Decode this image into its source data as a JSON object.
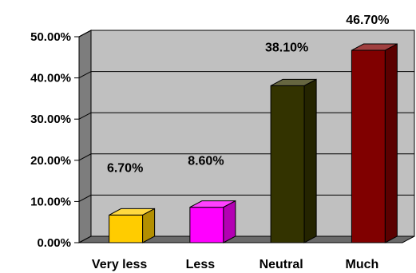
{
  "chart_data": {
    "type": "bar",
    "style": "3d",
    "categories": [
      "Very less",
      "Less",
      "Neutral",
      "Much"
    ],
    "values": [
      6.7,
      8.6,
      38.1,
      46.7
    ],
    "data_labels": [
      "6.70%",
      "8.60%",
      "38.10%",
      "46.70%"
    ],
    "colors": [
      "#FFCC00",
      "#FF00FF",
      "#333300",
      "#800000"
    ],
    "yticks": [
      0,
      10,
      20,
      30,
      40,
      50
    ],
    "ytick_labels": [
      "0.00%",
      "10.00%",
      "20.00%",
      "30.00%",
      "40.00%",
      "50.00%"
    ],
    "ylim": [
      0,
      50
    ],
    "grid": true,
    "legend": "none",
    "title": "",
    "xlabel": "",
    "ylabel": "",
    "plot_background": "#C0C0C0"
  }
}
